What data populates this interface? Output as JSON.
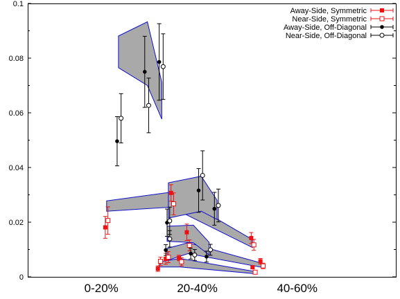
{
  "chart_data": {
    "type": "scatter",
    "title": "",
    "xlabel": "",
    "ylabel": "",
    "ylim": [
      0,
      0.1
    ],
    "yticks": [
      0,
      0.02,
      0.04,
      0.06,
      0.08,
      0.1
    ],
    "ytick_labels": [
      "0",
      "0.02",
      "0.04",
      "0.06",
      "0.08",
      "0.1"
    ],
    "categories": [
      "0-20%",
      "20-40%",
      "40-60%"
    ],
    "grid": false,
    "legend_position": "top-right",
    "series": [
      {
        "name": "Away-Side,  Symmetric",
        "color": "#ee1111",
        "marker": "filled-square",
        "points": [
          {
            "x": 0.39,
            "y": 0.0181,
            "err": 0.004
          },
          {
            "x": 0.89,
            "y": 0.0307,
            "err": 0.003
          },
          {
            "x": 1.5,
            "y": 0.0142,
            "err": 0.002
          },
          {
            "x": 0.85,
            "y": 0.0066,
            "err": 0.002
          },
          {
            "x": 1.01,
            "y": 0.0163,
            "err": 0.003
          },
          {
            "x": 1.57,
            "y": 0.0057,
            "err": 0.001
          },
          {
            "x": 0.79,
            "y": 0.003,
            "err": 0.001
          },
          {
            "x": 0.95,
            "y": 0.0069,
            "err": 0.001
          },
          {
            "x": 1.51,
            "y": 0.0035,
            "err": 0.0005
          }
        ]
      },
      {
        "name": "Near-Side,  Symmetric",
        "color": "#ee1111",
        "marker": "open-square",
        "points": [
          {
            "x": 0.41,
            "y": 0.0206,
            "err": 0.005
          },
          {
            "x": 0.91,
            "y": 0.0267,
            "err": 0.004
          },
          {
            "x": 1.52,
            "y": 0.0117,
            "err": 0.002
          },
          {
            "x": 0.87,
            "y": 0.0072,
            "err": 0.002
          },
          {
            "x": 1.03,
            "y": 0.0115,
            "err": 0.002
          },
          {
            "x": 1.59,
            "y": 0.004,
            "err": 0.001
          },
          {
            "x": 0.81,
            "y": 0.0057,
            "err": 0.0015
          },
          {
            "x": 0.97,
            "y": 0.0055,
            "err": 0.0015
          },
          {
            "x": 1.53,
            "y": 0.0017,
            "err": 0.0005
          }
        ]
      },
      {
        "name": "Away-Side, Off-Diagonal",
        "color": "#000000",
        "marker": "filled-circle",
        "points": [
          {
            "x": 0.48,
            "y": 0.0496,
            "err": 0.009
          },
          {
            "x": 0.69,
            "y": 0.075,
            "err": 0.013
          },
          {
            "x": 0.8,
            "y": 0.0786,
            "err": 0.014
          },
          {
            "x": 0.86,
            "y": 0.0198,
            "err": 0.005
          },
          {
            "x": 1.1,
            "y": 0.0316,
            "err": 0.008
          },
          {
            "x": 1.22,
            "y": 0.0249,
            "err": 0.006
          },
          {
            "x": 0.85,
            "y": 0.0098,
            "err": 0.002
          },
          {
            "x": 1.04,
            "y": 0.0085,
            "err": 0.002
          },
          {
            "x": 1.16,
            "y": 0.0074,
            "err": 0.002
          }
        ]
      },
      {
        "name": "Near-Side, Off-Diagonal",
        "color": "#000000",
        "marker": "open-circle",
        "points": [
          {
            "x": 0.51,
            "y": 0.058,
            "err": 0.009
          },
          {
            "x": 0.72,
            "y": 0.0627,
            "err": 0.01
          },
          {
            "x": 0.83,
            "y": 0.0769,
            "err": 0.012
          },
          {
            "x": 0.88,
            "y": 0.0205,
            "err": 0.005
          },
          {
            "x": 1.13,
            "y": 0.0371,
            "err": 0.009
          },
          {
            "x": 1.25,
            "y": 0.0261,
            "err": 0.006
          },
          {
            "x": 0.88,
            "y": 0.0139,
            "err": 0.003
          },
          {
            "x": 1.07,
            "y": 0.008,
            "err": 0.002
          },
          {
            "x": 1.19,
            "y": 0.0099,
            "err": 0.002
          }
        ]
      }
    ],
    "bands": [
      {
        "color": "#a9a9a9",
        "edge": "#1010cc",
        "x": [
          0.4,
          0.89,
          1.51
        ],
        "lower": [
          0.024,
          0.0255,
          0.0107
        ],
        "upper": [
          0.0278,
          0.031,
          0.0136
        ]
      },
      {
        "color": "#a9a9a9",
        "edge": "#1010cc",
        "x": [
          0.86,
          1.02,
          1.58
        ],
        "lower": [
          0.006,
          0.0085,
          0.0035
        ],
        "upper": [
          0.0104,
          0.0125,
          0.005
        ]
      },
      {
        "color": "#a9a9a9",
        "edge": "#1010cc",
        "x": [
          0.8,
          0.96,
          1.52
        ],
        "lower": [
          0.0036,
          0.0036,
          0.0012
        ],
        "upper": [
          0.0055,
          0.0067,
          0.002
        ]
      },
      {
        "color": "#a9a9a9",
        "edge": "#1010cc",
        "x": [
          0.49,
          0.71,
          0.82
        ],
        "lower": [
          0.0765,
          0.07,
          0.0577
        ],
        "upper": [
          0.0881,
          0.0933,
          0.0712
        ]
      },
      {
        "color": "#a9a9a9",
        "edge": "#1010cc",
        "x": [
          0.87,
          1.12,
          1.24
        ],
        "lower": [
          0.0215,
          0.024,
          0.021
        ],
        "upper": [
          0.0344,
          0.0368,
          0.028
        ]
      },
      {
        "color": "#a9a9a9",
        "edge": "#1010cc",
        "x": [
          0.86,
          1.06,
          1.18
        ],
        "lower": [
          0.013,
          0.0125,
          0.008
        ],
        "upper": [
          0.0185,
          0.0189,
          0.0126
        ]
      }
    ]
  }
}
